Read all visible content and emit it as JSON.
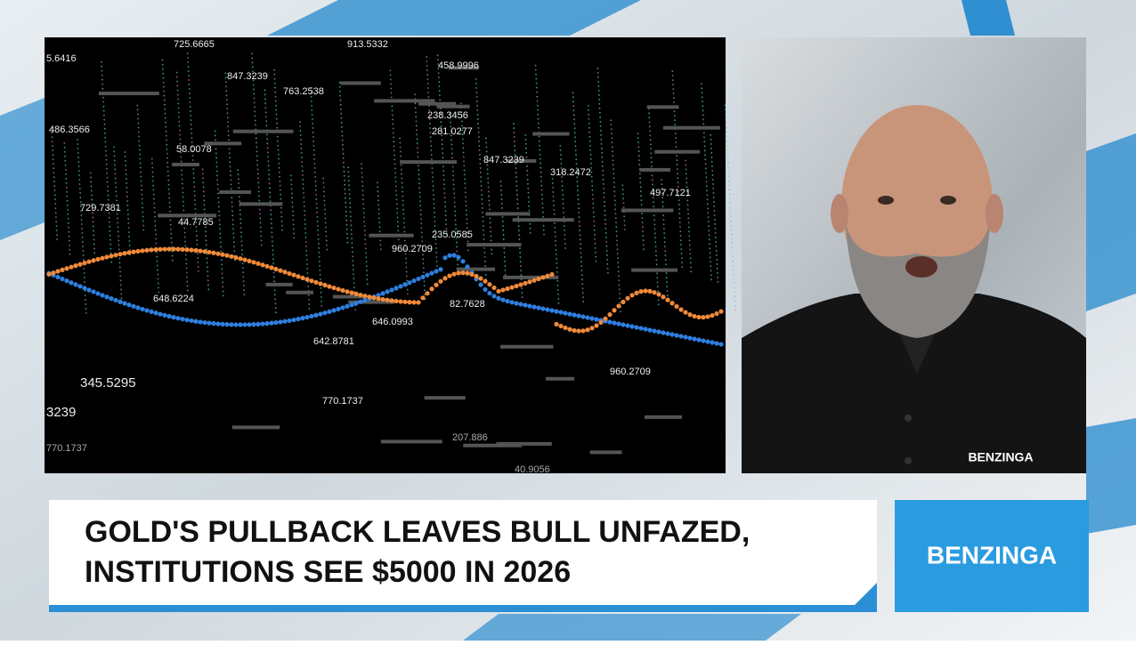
{
  "graphic": {
    "numbers": [
      "725.6665",
      "913.5332",
      "5.6416",
      "847.3239",
      "763.2538",
      "458.9996",
      "238.3456",
      "486.3566",
      "281.0277",
      "58.0078",
      "847.3239",
      "318.2472",
      "729.7381",
      "44.7785",
      "497.7121",
      "235.0585",
      "960.2709",
      "648.6224",
      "646.0993",
      "642.8781",
      "82.7628",
      "960.2709",
      "345.5295",
      "770.1737",
      "3239",
      "207.886",
      "770.1737",
      "40.9056"
    ]
  },
  "presenter": {
    "shirt_logo": "BENZINGA"
  },
  "headline": {
    "line1": "GOLD'S PULLBACK LEAVES BULL UNFAZED,",
    "line2": "INSTITUTIONS SEE $5000 IN 2026"
  },
  "brand": {
    "logo": "BENZINGA"
  }
}
